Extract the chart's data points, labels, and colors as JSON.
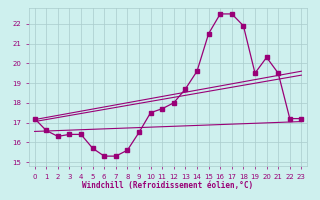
{
  "xlabel": "Windchill (Refroidissement éolien,°C)",
  "background_color": "#cef0ee",
  "grid_color": "#aacccc",
  "line_color": "#990077",
  "xlim": [
    -0.5,
    23.5
  ],
  "ylim": [
    14.8,
    22.8
  ],
  "yticks": [
    15,
    16,
    17,
    18,
    19,
    20,
    21,
    22
  ],
  "xticks": [
    0,
    1,
    2,
    3,
    4,
    5,
    6,
    7,
    8,
    9,
    10,
    11,
    12,
    13,
    14,
    15,
    16,
    17,
    18,
    19,
    20,
    21,
    22,
    23
  ],
  "curve1_x": [
    0,
    1,
    2,
    3,
    4,
    5,
    6,
    7,
    8,
    9,
    10,
    11,
    12,
    13,
    14,
    15,
    16,
    17,
    18,
    19,
    20,
    21,
    22,
    23
  ],
  "curve1_y": [
    17.2,
    16.6,
    16.3,
    16.4,
    16.4,
    15.7,
    15.3,
    15.3,
    15.6,
    16.5,
    17.5,
    17.7,
    18.0,
    18.7,
    19.6,
    21.5,
    22.5,
    22.5,
    21.9,
    19.5,
    20.3,
    19.5,
    17.2,
    17.2
  ],
  "line1_x": [
    0,
    23
  ],
  "line1_y": [
    17.15,
    19.6
  ],
  "line2_x": [
    0,
    23
  ],
  "line2_y": [
    17.05,
    19.4
  ],
  "line3_x": [
    0,
    23
  ],
  "line3_y": [
    16.55,
    17.05
  ]
}
